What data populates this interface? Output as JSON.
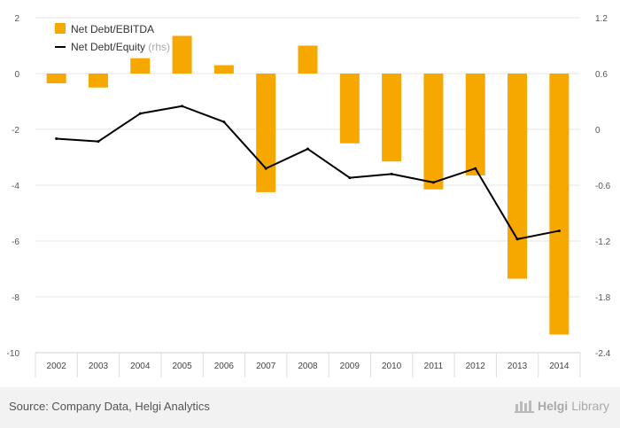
{
  "chart_data": {
    "type": "bar",
    "categories": [
      "2002",
      "2003",
      "2004",
      "2005",
      "2006",
      "2007",
      "2008",
      "2009",
      "2010",
      "2011",
      "2012",
      "2013",
      "2014"
    ],
    "series": [
      {
        "name": "Net Debt/EBITDA",
        "type": "bar",
        "axis": "left",
        "color": "#f7a800",
        "values": [
          -0.35,
          -0.5,
          0.55,
          1.35,
          0.3,
          -4.25,
          1.0,
          -2.5,
          -3.15,
          -4.15,
          -3.65,
          -7.35,
          -9.35
        ]
      },
      {
        "name": "Net Debt/Equity",
        "type": "line",
        "axis": "right",
        "color": "#000000",
        "values": [
          -0.1,
          -0.13,
          0.17,
          0.25,
          0.08,
          -0.42,
          -0.21,
          -0.52,
          -0.48,
          -0.57,
          -0.42,
          -1.18,
          -1.09
        ]
      }
    ],
    "legend": [
      {
        "label": "Net Debt/EBITDA",
        "suffix": ""
      },
      {
        "label": "Net Debt/Equity",
        "suffix": "(rhs)"
      }
    ],
    "legend_position": "top-left",
    "y_left": {
      "range": [
        -10,
        2
      ],
      "ticks": [
        "2",
        "0",
        "-2",
        "-4",
        "-6",
        "-8",
        "-10"
      ]
    },
    "y_right": {
      "range": [
        -2.4,
        1.2
      ],
      "ticks": [
        "1.2",
        "0.6",
        "0",
        "-0.6",
        "-1.2",
        "-1.8",
        "-2.4"
      ]
    },
    "grid": true
  },
  "footer": {
    "source": "Source: Company Data, Helgi Analytics",
    "brand_bold": "Helgi",
    "brand_light": "Library"
  }
}
